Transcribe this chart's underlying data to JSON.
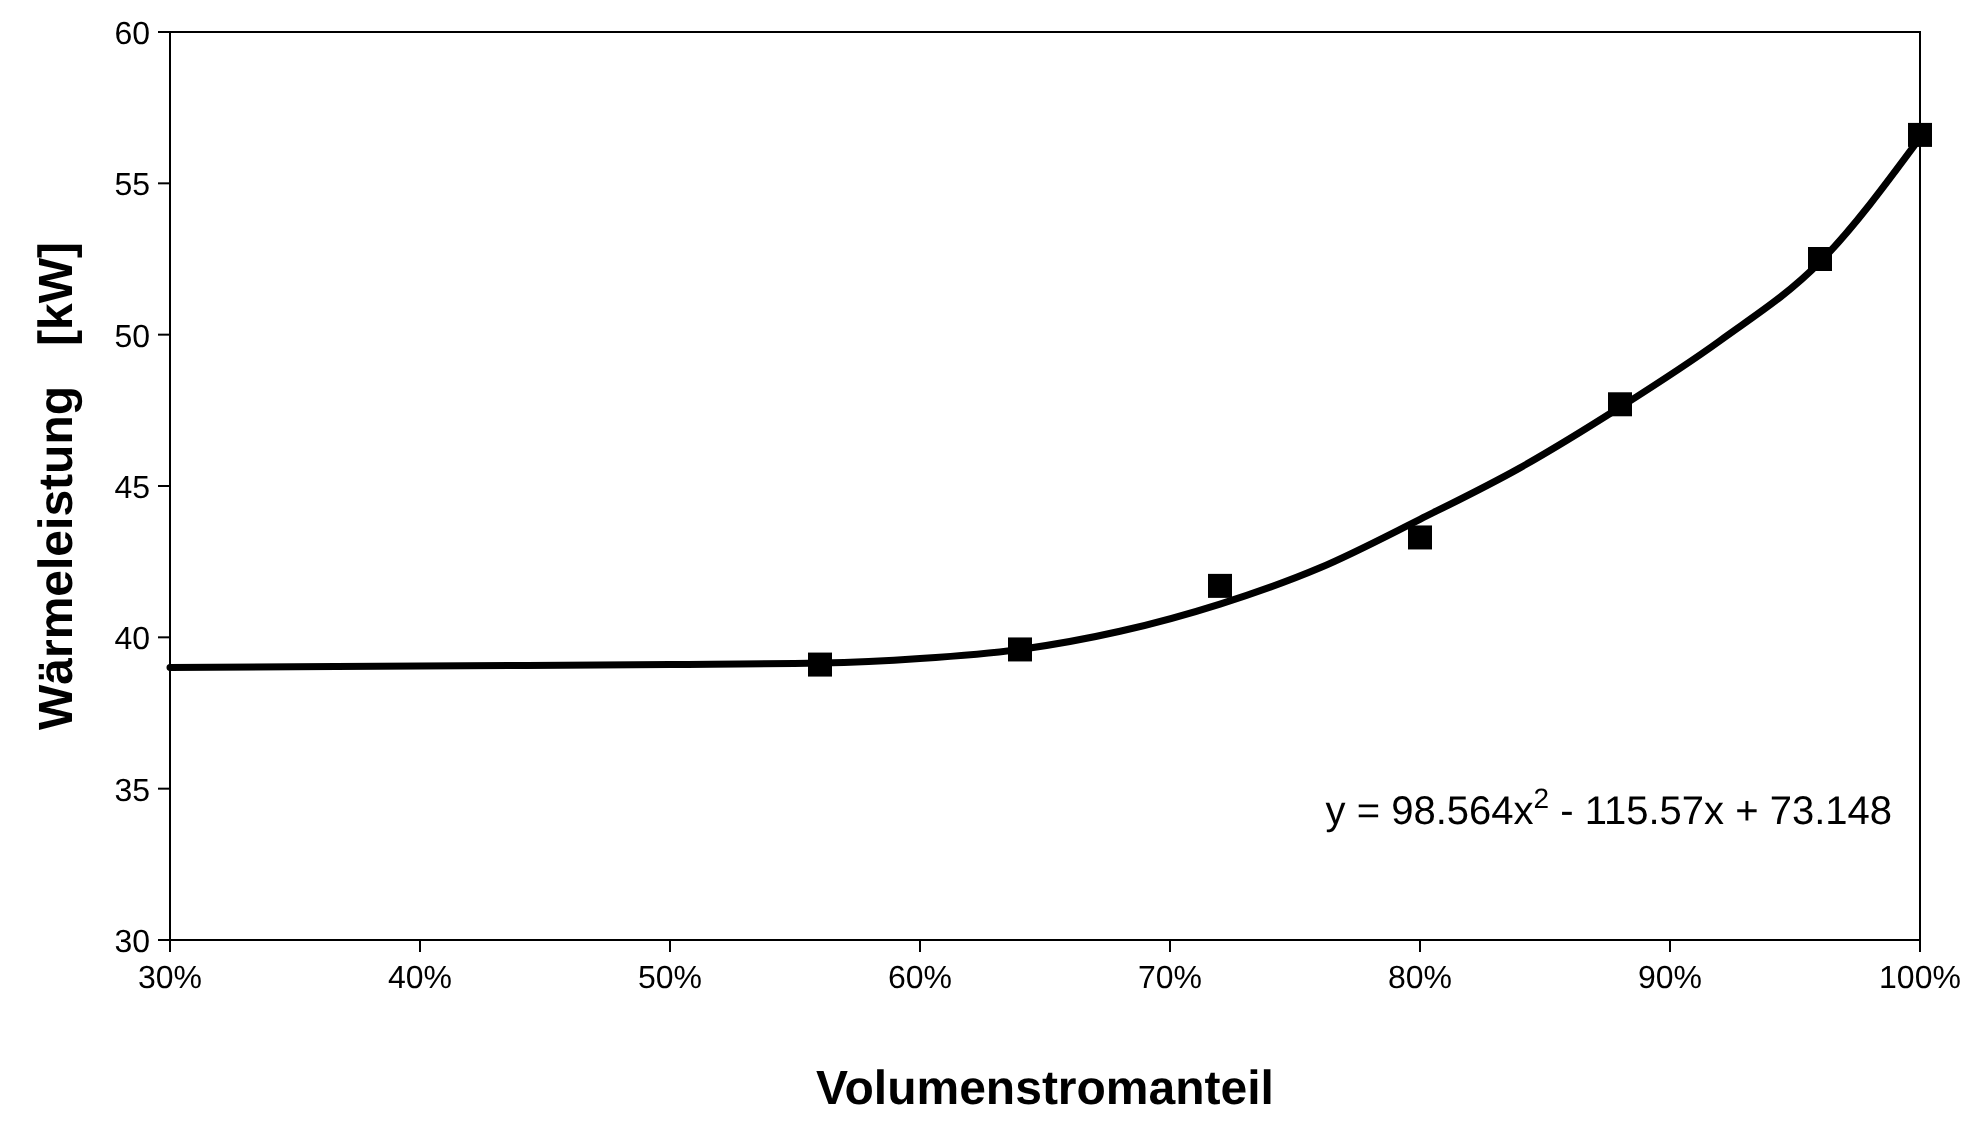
{
  "chart_data": {
    "type": "scatter",
    "xlabel": "Volumenstromanteil",
    "ylabel": "Wärmeleistung   [kW]",
    "annotations": [
      "y = 98.564x$^{2}$ - 115.57x + 73.148"
    ],
    "xlim": [
      0.3,
      1.0
    ],
    "ylim": [
      30,
      60
    ],
    "xticks": [
      {
        "value": 0.3,
        "label": "30%"
      },
      {
        "value": 0.4,
        "label": "40%"
      },
      {
        "value": 0.5,
        "label": "50%"
      },
      {
        "value": 0.6,
        "label": "60%"
      },
      {
        "value": 0.7,
        "label": "70%"
      },
      {
        "value": 0.8,
        "label": "80%"
      },
      {
        "value": 0.9,
        "label": "90%"
      },
      {
        "value": 1.0,
        "label": "100%"
      }
    ],
    "yticks": [
      30,
      35,
      40,
      45,
      50,
      55,
      60
    ],
    "grid": false,
    "series": [
      {
        "type": "line",
        "color": "#000000",
        "marker": "none",
        "line_style": "solid",
        "x": [
          0.3,
          0.4,
          0.5,
          0.56,
          0.6,
          0.64,
          0.68,
          0.72,
          0.76,
          0.8,
          0.84,
          0.88,
          0.92,
          0.96,
          1.0
        ],
        "values": [
          39.0,
          39.05,
          39.1,
          39.15,
          39.3,
          39.6,
          40.2,
          41.1,
          42.3,
          43.9,
          45.6,
          47.6,
          49.8,
          52.4,
          56.5
        ]
      },
      {
        "color": "#000000",
        "marker": "square",
        "x": [
          0.56,
          0.64,
          0.72,
          0.8,
          0.88,
          0.96,
          1.0
        ],
        "values": [
          39.1,
          39.6,
          41.7,
          43.3,
          47.7,
          52.5,
          56.6
        ]
      }
    ]
  }
}
